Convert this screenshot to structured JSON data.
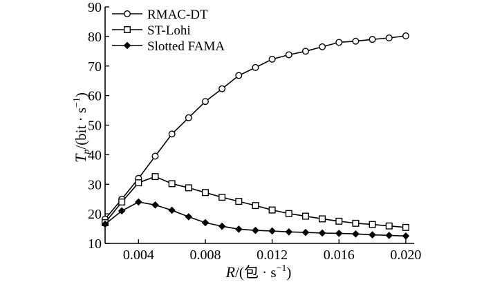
{
  "chart_data": {
    "type": "line",
    "xlabel": {
      "var": "R",
      "sep": "/(",
      "unit": "包 · s",
      "exp": "−1",
      "close": ")"
    },
    "ylabel": {
      "var": "T",
      "sub": "p",
      "sep": "/(",
      "unit": "bit · s",
      "exp": "−1",
      "close": ")"
    },
    "xlim": [
      0.002,
      0.0205
    ],
    "ylim": [
      10,
      90
    ],
    "x_ticks": [
      0.004,
      0.008,
      0.012,
      0.016,
      0.02
    ],
    "x_tick_labels": [
      "0.004",
      "0.008",
      "0.012",
      "0.016",
      "0.020"
    ],
    "y_ticks": [
      10,
      20,
      30,
      40,
      50,
      60,
      70,
      80,
      90
    ],
    "y_tick_labels": [
      "10",
      "20",
      "30",
      "40",
      "50",
      "60",
      "70",
      "80",
      "90"
    ],
    "x": [
      0.002,
      0.003,
      0.004,
      0.005,
      0.006,
      0.007,
      0.008,
      0.009,
      0.01,
      0.011,
      0.012,
      0.013,
      0.014,
      0.015,
      0.016,
      0.017,
      0.018,
      0.019,
      0.02
    ],
    "legend_position": "top-left",
    "series": [
      {
        "name": "RMAC-DT",
        "marker": "circle",
        "values": [
          18.2,
          25,
          32,
          39.5,
          47,
          52.5,
          58,
          62.3,
          66.8,
          69.5,
          72.3,
          73.8,
          75,
          76.5,
          78,
          78.4,
          79,
          79.5,
          80.2
        ]
      },
      {
        "name": "ST-Lohi",
        "marker": "square",
        "values": [
          17,
          24,
          30.5,
          32.6,
          30.2,
          28.8,
          27.2,
          25.6,
          24.2,
          22.8,
          21.3,
          20.1,
          19.2,
          18.3,
          17.5,
          16.8,
          16.4,
          15.9,
          15.4
        ]
      },
      {
        "name": "Slotted FAMA",
        "marker": "diamond",
        "values": [
          16.5,
          21,
          24,
          23,
          21.2,
          19,
          17,
          15.8,
          14.8,
          14.4,
          14.2,
          13.9,
          13.7,
          13.5,
          13.4,
          13.2,
          12.9,
          12.7,
          12.5
        ]
      }
    ]
  }
}
